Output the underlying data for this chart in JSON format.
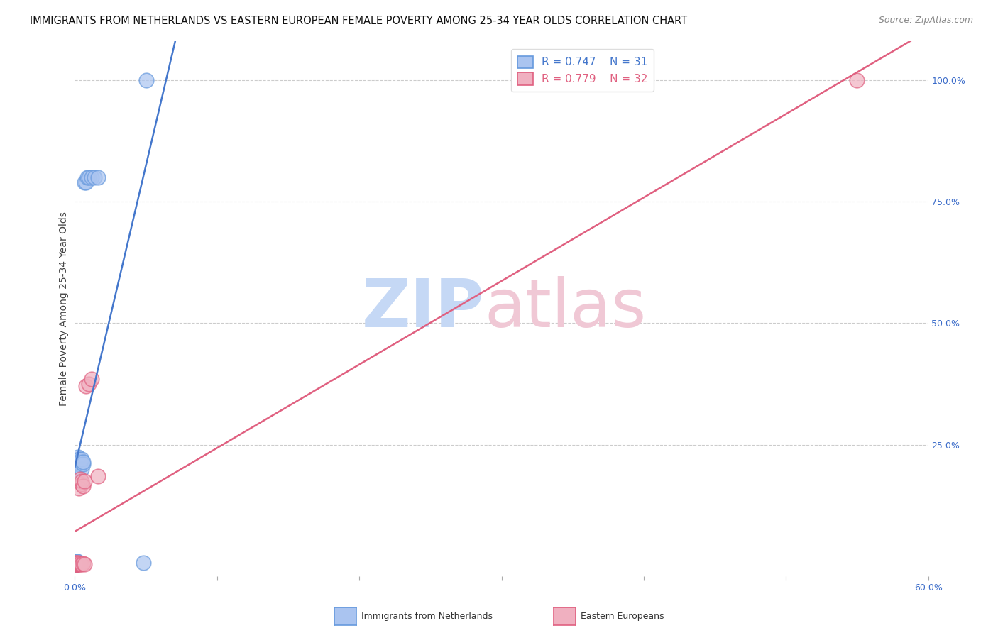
{
  "title": "IMMIGRANTS FROM NETHERLANDS VS EASTERN EUROPEAN FEMALE POVERTY AMONG 25-34 YEAR OLDS CORRELATION CHART",
  "source": "Source: ZipAtlas.com",
  "ylabel": "Female Poverty Among 25-34 Year Olds",
  "blue_label": "Immigrants from Netherlands",
  "pink_label": "Eastern Europeans",
  "blue_R": 0.747,
  "blue_N": 31,
  "pink_R": 0.779,
  "pink_N": 32,
  "xlim": [
    0.0,
    0.6
  ],
  "ylim": [
    -0.02,
    1.08
  ],
  "xticks": [
    0.0,
    0.1,
    0.2,
    0.3,
    0.4,
    0.5,
    0.6
  ],
  "xticklabels": [
    "0.0%",
    "",
    "",
    "",
    "",
    "",
    "60.0%"
  ],
  "yticks_right": [
    0.0,
    0.25,
    0.5,
    0.75,
    1.0
  ],
  "ytick_right_labels": [
    "",
    "25.0%",
    "50.0%",
    "75.0%",
    "100.0%"
  ],
  "blue_color": "#aac4f0",
  "pink_color": "#f0b0c0",
  "blue_edge_color": "#6699dd",
  "pink_edge_color": "#e06080",
  "blue_line_color": "#4477cc",
  "pink_line_color": "#e06080",
  "background_color": "#ffffff",
  "watermark_zip_color": "#c5d8f5",
  "watermark_atlas_color": "#f0c8d5",
  "blue_x": [
    0.0005,
    0.0008,
    0.001,
    0.001,
    0.0012,
    0.0013,
    0.0015,
    0.0015,
    0.002,
    0.002,
    0.002,
    0.0022,
    0.0025,
    0.003,
    0.003,
    0.0032,
    0.004,
    0.004,
    0.005,
    0.005,
    0.006,
    0.006,
    0.007,
    0.008,
    0.009,
    0.01,
    0.012,
    0.014,
    0.016,
    0.048,
    0.05
  ],
  "blue_y": [
    0.005,
    0.008,
    0.005,
    0.01,
    0.005,
    0.005,
    0.008,
    0.01,
    0.005,
    0.01,
    0.2,
    0.22,
    0.225,
    0.21,
    0.215,
    0.22,
    0.21,
    0.215,
    0.2,
    0.22,
    0.21,
    0.215,
    0.79,
    0.79,
    0.8,
    0.8,
    0.8,
    0.8,
    0.8,
    0.007,
    1.0
  ],
  "pink_x": [
    0.0005,
    0.0008,
    0.001,
    0.001,
    0.0012,
    0.0013,
    0.0015,
    0.0018,
    0.002,
    0.002,
    0.002,
    0.0022,
    0.0025,
    0.003,
    0.003,
    0.003,
    0.003,
    0.004,
    0.004,
    0.004,
    0.005,
    0.005,
    0.005,
    0.006,
    0.006,
    0.007,
    0.007,
    0.008,
    0.01,
    0.012,
    0.016,
    0.55
  ],
  "pink_y": [
    0.005,
    0.008,
    0.005,
    0.008,
    0.005,
    0.006,
    0.005,
    0.005,
    0.005,
    0.007,
    0.006,
    0.006,
    0.005,
    0.005,
    0.006,
    0.007,
    0.16,
    0.005,
    0.006,
    0.18,
    0.17,
    0.005,
    0.175,
    0.165,
    0.006,
    0.175,
    0.005,
    0.37,
    0.375,
    0.385,
    0.185,
    1.0
  ],
  "title_fontsize": 10.5,
  "source_fontsize": 9,
  "axis_label_fontsize": 10,
  "tick_fontsize": 9,
  "legend_fontsize": 11
}
